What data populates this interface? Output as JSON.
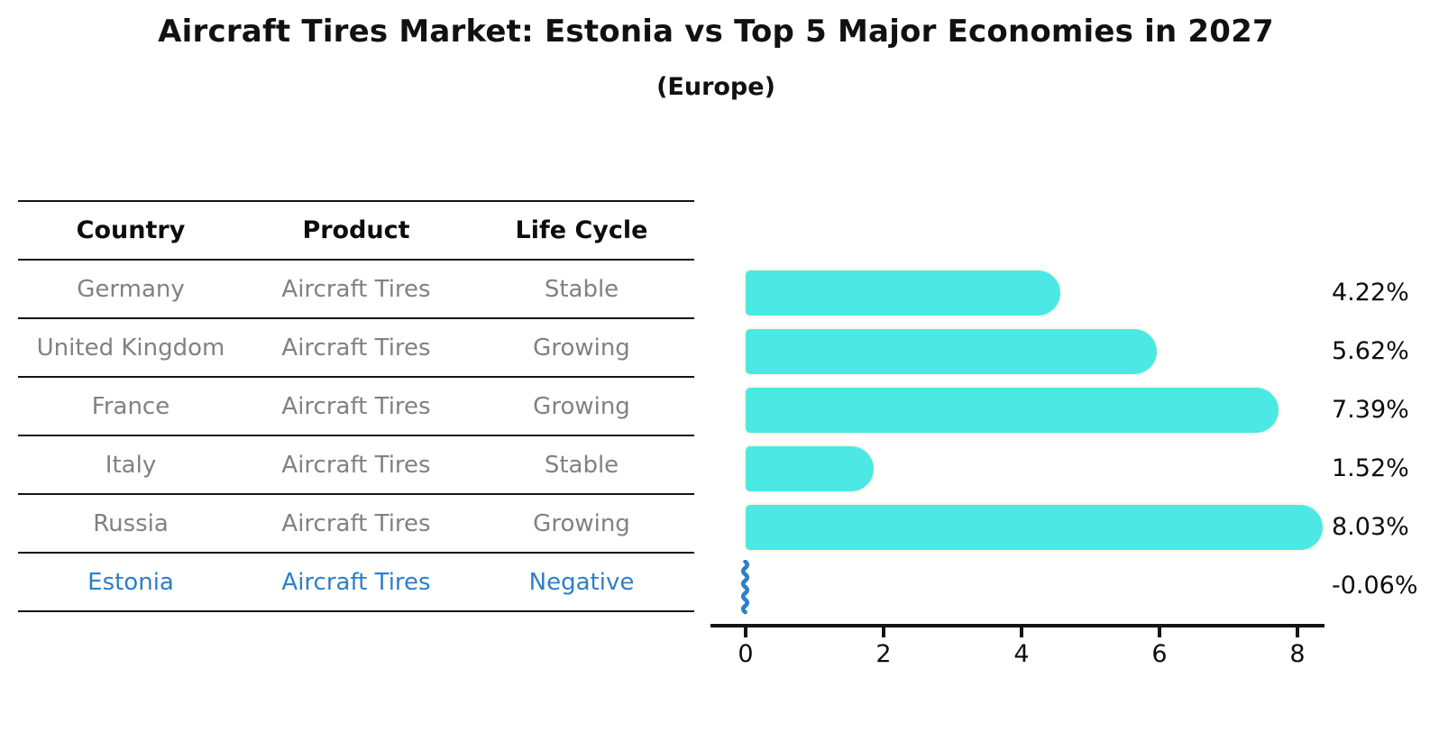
{
  "header": {
    "title": "Aircraft Tires Market: Estonia vs Top 5 Major Economies in 2027",
    "subtitle": "(Europe)"
  },
  "table": {
    "columns": [
      "Country",
      "Product",
      "Life Cycle"
    ],
    "rows": [
      {
        "country": "Germany",
        "product": "Aircraft Tires",
        "life_cycle": "Stable"
      },
      {
        "country": "United Kingdom",
        "product": "Aircraft Tires",
        "life_cycle": "Growing"
      },
      {
        "country": "France",
        "product": "Aircraft Tires",
        "life_cycle": "Growing"
      },
      {
        "country": "Italy",
        "product": "Aircraft Tires",
        "life_cycle": "Stable"
      },
      {
        "country": "Russia",
        "product": "Aircraft Tires",
        "life_cycle": "Growing"
      },
      {
        "country": "Estonia",
        "product": "Aircraft Tires",
        "life_cycle": "Negative"
      }
    ]
  },
  "chart_data": {
    "type": "bar",
    "orientation": "horizontal",
    "categories": [
      "Germany",
      "United Kingdom",
      "France",
      "Italy",
      "Russia",
      "Estonia"
    ],
    "values": [
      4.22,
      5.62,
      7.39,
      1.52,
      8.03,
      -0.06
    ],
    "value_labels": [
      "4.22%",
      "5.62%",
      "7.39%",
      "1.52%",
      "8.03%",
      "-0.06%"
    ],
    "x_ticks": [
      "0",
      "2",
      "4",
      "6",
      "8"
    ],
    "xlim": [
      0,
      8.4
    ],
    "grid": false,
    "legend": null,
    "bar_color": "#4be8e4",
    "negative_marker_color": "#2c7fc9",
    "highlight_text_color": "#2c7fc9",
    "cell_text_color": "#818181"
  }
}
